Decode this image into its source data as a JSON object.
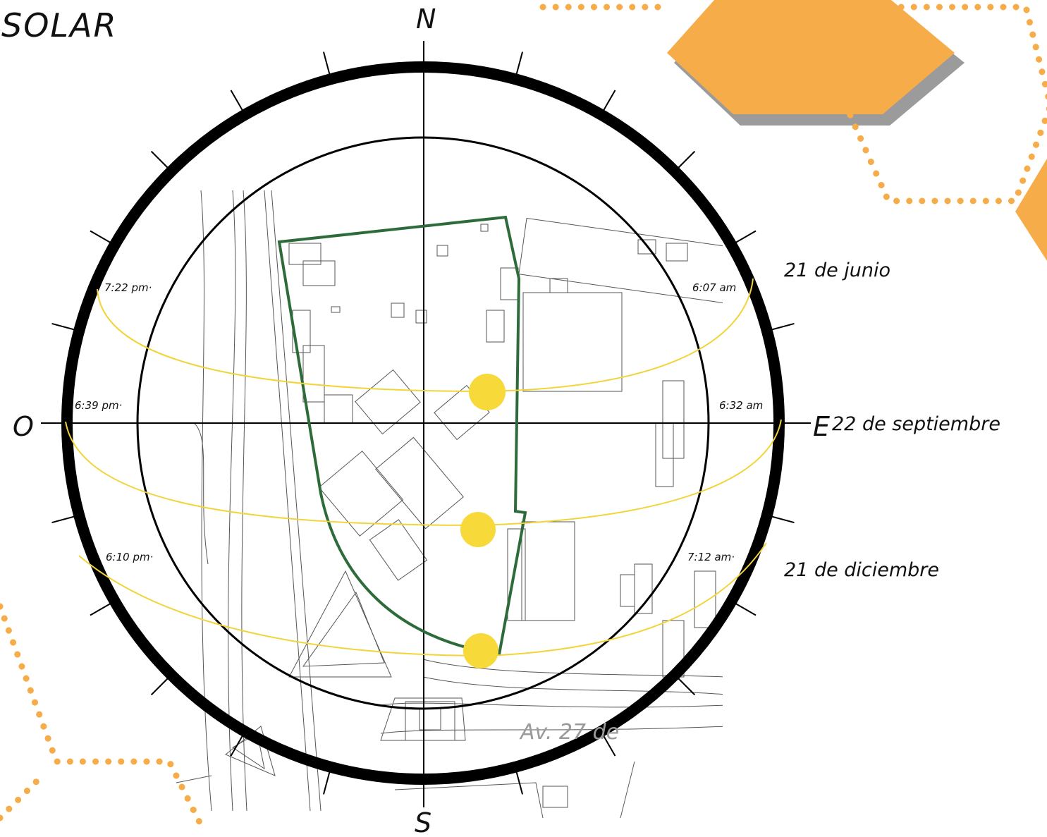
{
  "title": "SOLAR",
  "cardinals": {
    "north": "N",
    "south": "S",
    "east": "E",
    "west": "O"
  },
  "paths": [
    {
      "label": "21 de junio",
      "sunrise": "6:07 am",
      "sunset": "7:22 pm·"
    },
    {
      "label": "22 de septiembre",
      "sunrise": "6:32 am",
      "sunset": "6:39 pm·"
    },
    {
      "label": "21 de diciembre",
      "sunrise": "7:12 am·",
      "sunset": "6:10 pm·"
    }
  ],
  "street_label": "Av. 27 de",
  "colors": {
    "sun_path": "#f2d43a",
    "sun": "#f7d93a",
    "site_outline": "#2e6b3a",
    "hexagon": "#f7ac4a",
    "hexagon_shadow": "#8a8a8a"
  }
}
